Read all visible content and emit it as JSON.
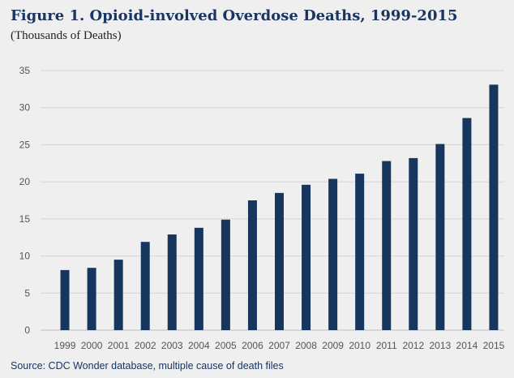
{
  "title": "Figure 1. Opioid-involved Overdose Deaths, 1999-2015",
  "subtitle": "(Thousands of Deaths)",
  "source": "Source: CDC Wonder database, multiple cause of death files",
  "colors": {
    "bar": "#17365d",
    "background": "#efefef",
    "grid": "#d4d4d4",
    "axis_text": "#555555"
  },
  "chart_data": {
    "type": "bar",
    "title": "Figure 1. Opioid-involved Overdose Deaths, 1999-2015",
    "subtitle": "(Thousands of Deaths)",
    "xlabel": "",
    "ylabel": "",
    "categories": [
      "1999",
      "2000",
      "2001",
      "2002",
      "2003",
      "2004",
      "2005",
      "2006",
      "2007",
      "2008",
      "2009",
      "2010",
      "2011",
      "2012",
      "2013",
      "2014",
      "2015"
    ],
    "values": [
      8.1,
      8.4,
      9.5,
      11.9,
      12.9,
      13.8,
      14.9,
      17.5,
      18.5,
      19.6,
      20.4,
      21.1,
      22.8,
      23.2,
      25.1,
      28.6,
      33.1
    ],
    "ylim": [
      0,
      35
    ],
    "yticks": [
      0,
      5,
      10,
      15,
      20,
      25,
      30,
      35
    ],
    "grid": true,
    "legend": "none"
  }
}
